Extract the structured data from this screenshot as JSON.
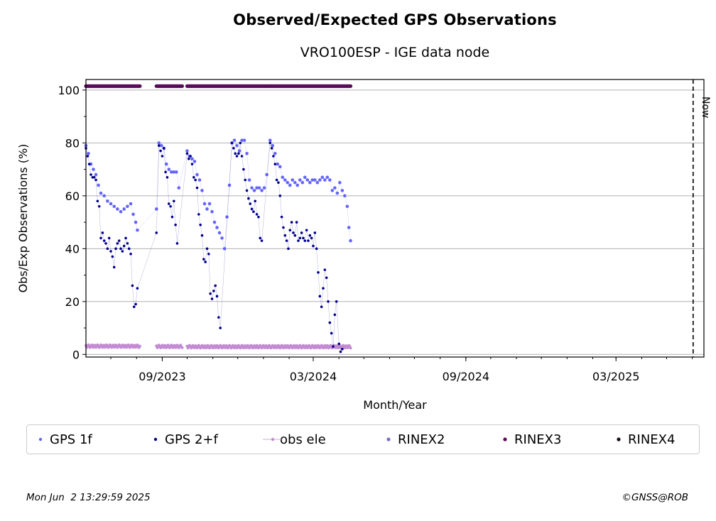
{
  "title": "Observed/Expected GPS Observations",
  "subtitle": "VRO100ESP - IGE data node",
  "footer": {
    "timestamp": "Mon Jun  2 13:29:59 2025",
    "copyright": "©GNSS@ROB"
  },
  "chart_data": {
    "type": "scatter",
    "xlabel": "Month/Year",
    "ylabel": "Obs/Exp Observations (%)",
    "x_ticks": [
      "09/2023",
      "03/2024",
      "09/2024",
      "03/2025"
    ],
    "y_ticks": [
      0,
      20,
      40,
      60,
      80,
      100
    ],
    "xlim": [
      "2023-06-01",
      "2025-06-15"
    ],
    "ylim": [
      -1,
      104
    ],
    "grid": "horizontal",
    "legend_placement": "below",
    "now_marker": {
      "label": "Now",
      "date": "2025-06-02"
    },
    "colors": {
      "gps_1f": "#6464ff",
      "gps_2f": "#00008b",
      "obs_ele": "#c38cd2",
      "rinex2": "#7a6fc4",
      "rinex3": "#5a0a5a",
      "rinex4": "#1a0a1a"
    },
    "series": [
      {
        "name": "GPS 1f",
        "points": [
          [
            "2023-06-01",
            79
          ],
          [
            "2023-06-04",
            76
          ],
          [
            "2023-06-07",
            72
          ],
          [
            "2023-06-10",
            70
          ],
          [
            "2023-06-13",
            68
          ],
          [
            "2023-06-16",
            64
          ],
          [
            "2023-06-19",
            61
          ],
          [
            "2023-06-23",
            60
          ],
          [
            "2023-06-27",
            58
          ],
          [
            "2023-07-01",
            57
          ],
          [
            "2023-07-05",
            56
          ],
          [
            "2023-07-09",
            55
          ],
          [
            "2023-07-13",
            54
          ],
          [
            "2023-07-17",
            55
          ],
          [
            "2023-07-21",
            56
          ],
          [
            "2023-07-25",
            57
          ],
          [
            "2023-07-28",
            53
          ],
          [
            "2023-07-31",
            50
          ],
          [
            "2023-08-02",
            47
          ],
          [
            "2023-08-25",
            55
          ],
          [
            "2023-08-28",
            80
          ],
          [
            "2023-08-31",
            79
          ],
          [
            "2023-09-03",
            78
          ],
          [
            "2023-09-06",
            72
          ],
          [
            "2023-09-09",
            70
          ],
          [
            "2023-09-12",
            69
          ],
          [
            "2023-09-15",
            69
          ],
          [
            "2023-09-18",
            69
          ],
          [
            "2023-09-21",
            63
          ],
          [
            "2023-10-01",
            77
          ],
          [
            "2023-10-04",
            75
          ],
          [
            "2023-10-07",
            74
          ],
          [
            "2023-10-10",
            73
          ],
          [
            "2023-10-13",
            68
          ],
          [
            "2023-10-16",
            66
          ],
          [
            "2023-10-19",
            62
          ],
          [
            "2023-10-22",
            57
          ],
          [
            "2023-10-25",
            55
          ],
          [
            "2023-10-28",
            57
          ],
          [
            "2023-10-31",
            54
          ],
          [
            "2023-11-03",
            50
          ],
          [
            "2023-11-06",
            48
          ],
          [
            "2023-11-09",
            46
          ],
          [
            "2023-11-12",
            44
          ],
          [
            "2023-11-15",
            40
          ],
          [
            "2023-11-18",
            52
          ],
          [
            "2023-11-21",
            64
          ],
          [
            "2023-11-24",
            80
          ],
          [
            "2023-11-27",
            81
          ],
          [
            "2023-11-30",
            79
          ],
          [
            "2023-12-03",
            77
          ],
          [
            "2023-12-06",
            81
          ],
          [
            "2023-12-09",
            81
          ],
          [
            "2023-12-12",
            76
          ],
          [
            "2023-12-15",
            66
          ],
          [
            "2023-12-18",
            63
          ],
          [
            "2023-12-21",
            62
          ],
          [
            "2023-12-24",
            63
          ],
          [
            "2023-12-27",
            63
          ],
          [
            "2023-12-30",
            62
          ],
          [
            "2024-01-02",
            63
          ],
          [
            "2024-01-05",
            68
          ],
          [
            "2024-01-09",
            81
          ],
          [
            "2024-01-12",
            79
          ],
          [
            "2024-01-15",
            76
          ],
          [
            "2024-01-18",
            72
          ],
          [
            "2024-01-21",
            71
          ],
          [
            "2024-01-24",
            67
          ],
          [
            "2024-01-27",
            66
          ],
          [
            "2024-01-30",
            65
          ],
          [
            "2024-02-02",
            64
          ],
          [
            "2024-02-05",
            66
          ],
          [
            "2024-02-08",
            65
          ],
          [
            "2024-02-11",
            64
          ],
          [
            "2024-02-14",
            66
          ],
          [
            "2024-02-17",
            65
          ],
          [
            "2024-02-20",
            67
          ],
          [
            "2024-02-23",
            66
          ],
          [
            "2024-02-26",
            65
          ],
          [
            "2024-02-29",
            66
          ],
          [
            "2024-03-03",
            66
          ],
          [
            "2024-03-06",
            65
          ],
          [
            "2024-03-09",
            66
          ],
          [
            "2024-03-12",
            67
          ],
          [
            "2024-03-15",
            66
          ],
          [
            "2024-03-18",
            67
          ],
          [
            "2024-03-21",
            66
          ],
          [
            "2024-03-24",
            62
          ],
          [
            "2024-03-27",
            63
          ],
          [
            "2024-03-30",
            61
          ],
          [
            "2024-04-02",
            65
          ],
          [
            "2024-04-05",
            62
          ],
          [
            "2024-04-08",
            60
          ],
          [
            "2024-04-11",
            56
          ],
          [
            "2024-04-13",
            48
          ],
          [
            "2024-04-15",
            43
          ]
        ]
      },
      {
        "name": "GPS 2+f",
        "points": [
          [
            "2023-06-01",
            78
          ],
          [
            "2023-06-03",
            75
          ],
          [
            "2023-06-05",
            72
          ],
          [
            "2023-06-07",
            68
          ],
          [
            "2023-06-09",
            67
          ],
          [
            "2023-06-11",
            67
          ],
          [
            "2023-06-13",
            66
          ],
          [
            "2023-06-15",
            58
          ],
          [
            "2023-06-17",
            56
          ],
          [
            "2023-06-19",
            44
          ],
          [
            "2023-06-21",
            46
          ],
          [
            "2023-06-23",
            43
          ],
          [
            "2023-06-25",
            42
          ],
          [
            "2023-06-27",
            40
          ],
          [
            "2023-06-29",
            44
          ],
          [
            "2023-07-01",
            39
          ],
          [
            "2023-07-03",
            37
          ],
          [
            "2023-07-05",
            33
          ],
          [
            "2023-07-07",
            40
          ],
          [
            "2023-07-09",
            42
          ],
          [
            "2023-07-11",
            43
          ],
          [
            "2023-07-13",
            40
          ],
          [
            "2023-07-15",
            39
          ],
          [
            "2023-07-17",
            41
          ],
          [
            "2023-07-19",
            44
          ],
          [
            "2023-07-21",
            42
          ],
          [
            "2023-07-23",
            40
          ],
          [
            "2023-07-25",
            38
          ],
          [
            "2023-07-27",
            26
          ],
          [
            "2023-07-29",
            18
          ],
          [
            "2023-07-31",
            19
          ],
          [
            "2023-08-02",
            25
          ],
          [
            "2023-08-25",
            46
          ],
          [
            "2023-08-28",
            79
          ],
          [
            "2023-08-30",
            77
          ],
          [
            "2023-09-01",
            75
          ],
          [
            "2023-09-03",
            78
          ],
          [
            "2023-09-05",
            69
          ],
          [
            "2023-09-07",
            67
          ],
          [
            "2023-09-09",
            57
          ],
          [
            "2023-09-11",
            56
          ],
          [
            "2023-09-13",
            52
          ],
          [
            "2023-09-15",
            58
          ],
          [
            "2023-09-17",
            49
          ],
          [
            "2023-09-19",
            42
          ],
          [
            "2023-10-01",
            76
          ],
          [
            "2023-10-03",
            74
          ],
          [
            "2023-10-05",
            75
          ],
          [
            "2023-10-07",
            72
          ],
          [
            "2023-10-09",
            67
          ],
          [
            "2023-10-11",
            66
          ],
          [
            "2023-10-13",
            63
          ],
          [
            "2023-10-15",
            53
          ],
          [
            "2023-10-17",
            49
          ],
          [
            "2023-10-19",
            45
          ],
          [
            "2023-10-21",
            36
          ],
          [
            "2023-10-23",
            35
          ],
          [
            "2023-10-25",
            40
          ],
          [
            "2023-10-27",
            38
          ],
          [
            "2023-10-29",
            23
          ],
          [
            "2023-10-31",
            21
          ],
          [
            "2023-11-02",
            24
          ],
          [
            "2023-11-04",
            26
          ],
          [
            "2023-11-06",
            22
          ],
          [
            "2023-11-08",
            14
          ],
          [
            "2023-11-10",
            10
          ],
          [
            "2023-11-24",
            80
          ],
          [
            "2023-11-26",
            78
          ],
          [
            "2023-11-28",
            76
          ],
          [
            "2023-11-30",
            75
          ],
          [
            "2023-12-02",
            76
          ],
          [
            "2023-12-04",
            80
          ],
          [
            "2023-12-06",
            75
          ],
          [
            "2023-12-08",
            70
          ],
          [
            "2023-12-10",
            66
          ],
          [
            "2023-12-12",
            62
          ],
          [
            "2023-12-14",
            59
          ],
          [
            "2023-12-16",
            57
          ],
          [
            "2023-12-18",
            55
          ],
          [
            "2023-12-20",
            54
          ],
          [
            "2023-12-22",
            58
          ],
          [
            "2023-12-24",
            53
          ],
          [
            "2023-12-26",
            52
          ],
          [
            "2023-12-28",
            44
          ],
          [
            "2023-12-30",
            43
          ],
          [
            "2024-01-09",
            80
          ],
          [
            "2024-01-11",
            78
          ],
          [
            "2024-01-13",
            75
          ],
          [
            "2024-01-15",
            72
          ],
          [
            "2024-01-17",
            66
          ],
          [
            "2024-01-19",
            65
          ],
          [
            "2024-01-21",
            60
          ],
          [
            "2024-01-23",
            52
          ],
          [
            "2024-01-25",
            48
          ],
          [
            "2024-01-27",
            45
          ],
          [
            "2024-01-29",
            43
          ],
          [
            "2024-01-31",
            40
          ],
          [
            "2024-02-02",
            47
          ],
          [
            "2024-02-04",
            50
          ],
          [
            "2024-02-06",
            46
          ],
          [
            "2024-02-08",
            45
          ],
          [
            "2024-02-10",
            50
          ],
          [
            "2024-02-12",
            43
          ],
          [
            "2024-02-14",
            44
          ],
          [
            "2024-02-16",
            46
          ],
          [
            "2024-02-18",
            44
          ],
          [
            "2024-02-20",
            43
          ],
          [
            "2024-02-22",
            47
          ],
          [
            "2024-02-24",
            43
          ],
          [
            "2024-02-26",
            45
          ],
          [
            "2024-02-28",
            44
          ],
          [
            "2024-03-01",
            41
          ],
          [
            "2024-03-03",
            46
          ],
          [
            "2024-03-05",
            40
          ],
          [
            "2024-03-07",
            31
          ],
          [
            "2024-03-09",
            22
          ],
          [
            "2024-03-11",
            18
          ],
          [
            "2024-03-13",
            25
          ],
          [
            "2024-03-15",
            32
          ],
          [
            "2024-03-17",
            29
          ],
          [
            "2024-03-19",
            20
          ],
          [
            "2024-03-21",
            12
          ],
          [
            "2024-03-23",
            8
          ],
          [
            "2024-03-25",
            3
          ],
          [
            "2024-03-27",
            15
          ],
          [
            "2024-03-29",
            20
          ],
          [
            "2024-04-01",
            4
          ],
          [
            "2024-04-03",
            1
          ],
          [
            "2024-04-05",
            2
          ]
        ]
      },
      {
        "name": "obs ele",
        "segments": [
          [
            "2023-06-01",
            "2023-08-05",
            3.1
          ],
          [
            "2023-08-25",
            "2023-09-25",
            3.0
          ],
          [
            "2023-10-01",
            "2024-04-15",
            2.9
          ]
        ]
      },
      {
        "name": "RINEX2",
        "points": []
      },
      {
        "name": "RINEX3",
        "value": 101.5,
        "segments": [
          [
            "2023-06-01",
            "2023-08-05"
          ],
          [
            "2023-08-25",
            "2023-09-25"
          ],
          [
            "2023-10-01",
            "2024-04-15"
          ]
        ]
      },
      {
        "name": "RINEX4",
        "points": []
      }
    ]
  }
}
